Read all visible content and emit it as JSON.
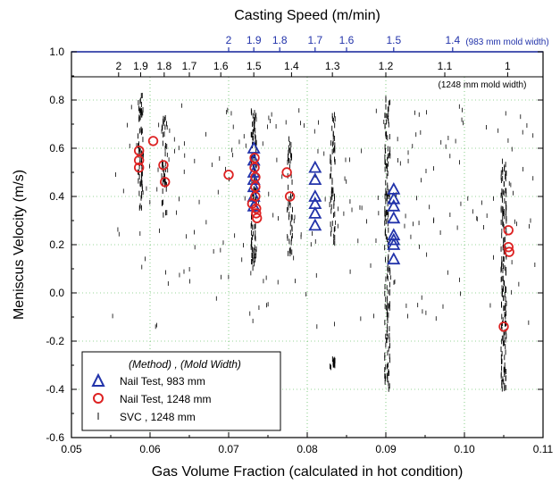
{
  "chart_data": {
    "type": "scatter",
    "xlabel": "Gas Volume Fraction (calculated in hot condition)",
    "ylabel": "Meniscus Velocity (m/s)",
    "xlim": [
      0.05,
      0.11
    ],
    "ylim": [
      -0.6,
      1.0
    ],
    "x_ticks": [
      "0.05",
      "0.06",
      "0.07",
      "0.08",
      "0.09",
      "0.10",
      "0.11"
    ],
    "y_ticks": [
      "-0.6",
      "-0.4",
      "-0.2",
      "0.0",
      "0.2",
      "0.4",
      "0.6",
      "0.8",
      "1.0"
    ],
    "grid": true,
    "top_axis": {
      "title": "Casting Speed (m/min)",
      "ticks_983": [
        {
          "label": "2",
          "x": 0.07
        },
        {
          "label": "1.9",
          "x": 0.0732
        },
        {
          "label": "1.8",
          "x": 0.0765
        },
        {
          "label": "1.7",
          "x": 0.081
        },
        {
          "label": "1.6",
          "x": 0.085
        },
        {
          "label": "1.5",
          "x": 0.091
        },
        {
          "label": "1.4",
          "x": 0.0985
        }
      ],
      "note_983": "(983 mm mold width)",
      "ticks_1248": [
        {
          "label": "2",
          "x": 0.056
        },
        {
          "label": "1.9",
          "x": 0.0588
        },
        {
          "label": "1.8",
          "x": 0.0618
        },
        {
          "label": "1.7",
          "x": 0.065
        },
        {
          "label": "1.6",
          "x": 0.069
        },
        {
          "label": "1.5",
          "x": 0.0732
        },
        {
          "label": "1.4",
          "x": 0.078
        },
        {
          "label": "1.3",
          "x": 0.0832
        },
        {
          "label": "1.2",
          "x": 0.09
        },
        {
          "label": "1.1",
          "x": 0.0975
        },
        {
          "label": "1",
          "x": 0.1055
        }
      ],
      "note_1248": "(1248 mm mold width)"
    },
    "series": [
      {
        "name": "Nail Test, 983 mm",
        "marker": "triangle",
        "color": "#2233aa",
        "points": [
          [
            0.0732,
            0.6
          ],
          [
            0.0732,
            0.55
          ],
          [
            0.0732,
            0.5
          ],
          [
            0.0732,
            0.47
          ],
          [
            0.0732,
            0.44
          ],
          [
            0.0732,
            0.4
          ],
          [
            0.0732,
            0.36
          ],
          [
            0.081,
            0.52
          ],
          [
            0.081,
            0.47
          ],
          [
            0.081,
            0.4
          ],
          [
            0.081,
            0.37
          ],
          [
            0.081,
            0.33
          ],
          [
            0.081,
            0.28
          ],
          [
            0.091,
            0.43
          ],
          [
            0.091,
            0.39
          ],
          [
            0.091,
            0.36
          ],
          [
            0.091,
            0.31
          ],
          [
            0.091,
            0.24
          ],
          [
            0.091,
            0.22
          ],
          [
            0.091,
            0.2
          ],
          [
            0.091,
            0.14
          ]
        ]
      },
      {
        "name": "Nail Test, 1248 mm",
        "marker": "circle",
        "color": "#dd2222",
        "points": [
          [
            0.0586,
            0.59
          ],
          [
            0.0586,
            0.55
          ],
          [
            0.0586,
            0.52
          ],
          [
            0.0604,
            0.63
          ],
          [
            0.0617,
            0.53
          ],
          [
            0.0619,
            0.46
          ],
          [
            0.07,
            0.49
          ],
          [
            0.073,
            0.37
          ],
          [
            0.0733,
            0.56
          ],
          [
            0.0733,
            0.52
          ],
          [
            0.0734,
            0.48
          ],
          [
            0.0734,
            0.44
          ],
          [
            0.0734,
            0.4
          ],
          [
            0.0735,
            0.35
          ],
          [
            0.0735,
            0.33
          ],
          [
            0.0736,
            0.31
          ],
          [
            0.0774,
            0.5
          ],
          [
            0.0778,
            0.4
          ],
          [
            0.105,
            -0.14
          ],
          [
            0.1056,
            0.26
          ],
          [
            0.1056,
            0.19
          ],
          [
            0.1057,
            0.17
          ]
        ]
      },
      {
        "name": "SVC, 1248 mm",
        "marker": "dash",
        "color": "#000000",
        "clusters": [
          {
            "x": 0.0588,
            "ymin": 0.35,
            "ymax": 0.82,
            "count": 70
          },
          {
            "x": 0.0618,
            "ymin": 0.32,
            "ymax": 0.73,
            "count": 45
          },
          {
            "x": 0.0732,
            "ymin": 0.1,
            "ymax": 0.76,
            "count": 110
          },
          {
            "x": 0.0778,
            "ymin": 0.16,
            "ymax": 0.65,
            "count": 50
          },
          {
            "x": 0.0832,
            "ymin": 0.2,
            "ymax": 0.74,
            "count": 60
          },
          {
            "x": 0.0832,
            "ymin": -0.31,
            "ymax": -0.27,
            "count": 14
          },
          {
            "x": 0.0902,
            "ymin": -0.4,
            "ymax": 0.84,
            "count": 150
          },
          {
            "x": 0.105,
            "ymin": -0.4,
            "ymax": 0.55,
            "count": 160
          }
        ],
        "scatter_band": {
          "xmin": 0.055,
          "xmax": 0.109,
          "ymin": -0.15,
          "ymax": 0.78,
          "count": 240
        }
      }
    ],
    "legend": {
      "position": "bottom-left",
      "header": "(Method) , (Mold Width)",
      "entries": [
        "Nail Test,   983 mm",
        "Nail Test, 1248 mm",
        "SVC       , 1248 mm"
      ]
    }
  }
}
